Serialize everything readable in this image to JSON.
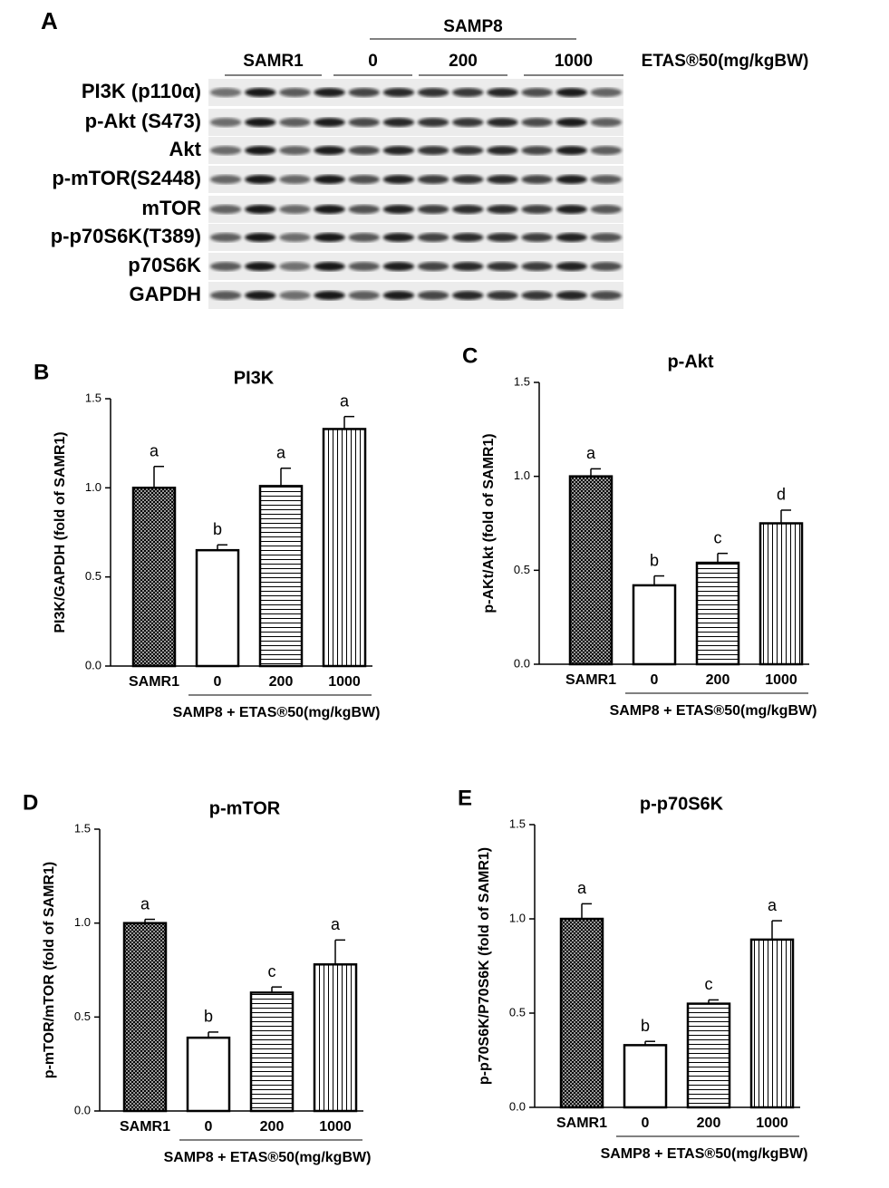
{
  "blot": {
    "panel_label": "A",
    "group_label": "SAMP8",
    "lanes": [
      "SAMR1",
      "0",
      "200",
      "1000"
    ],
    "treatment_label": "ETAS®50(mg/kgBW)",
    "rows": [
      "PI3K (p110α)",
      "p-Akt (S473)",
      "Akt",
      "p-mTOR(S2448)",
      "mTOR",
      "p-p70S6K(T389)",
      "p70S6K",
      "GAPDH"
    ]
  },
  "chart_data": [
    {
      "type": "bar",
      "panel_label": "B",
      "title": "PI3K",
      "y_label": "PI3K/GAPDH (fold of SAMR1)",
      "group_label": "SAMP8 + ETAS®50(mg/kgBW)",
      "categories": [
        "SAMR1",
        "0",
        "200",
        "1000"
      ],
      "values": [
        1.0,
        0.65,
        1.01,
        1.33
      ],
      "errors": [
        0.12,
        0.03,
        0.1,
        0.07
      ],
      "annotations": [
        "a",
        "b",
        "a",
        "a"
      ],
      "patterns": [
        "crosshatch",
        "none",
        "horizontal",
        "vertical"
      ],
      "color": "#000000",
      "ylim": [
        0,
        1.5
      ],
      "yticks": [
        {
          "value": 0,
          "label": "0.0"
        },
        {
          "value": 0.5,
          "label": "0.5"
        },
        {
          "value": 1,
          "label": "1.0"
        },
        {
          "value": 1.5,
          "label": "1.5"
        }
      ]
    },
    {
      "type": "bar",
      "panel_label": "C",
      "title": "p-Akt",
      "y_label": "p-AKt/Akt (fold of SAMR1)",
      "group_label": "SAMP8 + ETAS®50(mg/kgBW)",
      "categories": [
        "SAMR1",
        "0",
        "200",
        "1000"
      ],
      "values": [
        1.0,
        0.42,
        0.54,
        0.75
      ],
      "errors": [
        0.04,
        0.05,
        0.05,
        0.07
      ],
      "annotations": [
        "a",
        "b",
        "c",
        "d"
      ],
      "patterns": [
        "crosshatch",
        "none",
        "horizontal",
        "vertical"
      ],
      "color": "#000000",
      "ylim": [
        0,
        1.5
      ],
      "yticks": [
        {
          "value": 0,
          "label": "0.0"
        },
        {
          "value": 0.5,
          "label": "0.5"
        },
        {
          "value": 1,
          "label": "1.0"
        },
        {
          "value": 1.5,
          "label": "1.5"
        }
      ]
    },
    {
      "type": "bar",
      "panel_label": "D",
      "title": "p-mTOR",
      "y_label": "p-mTOR/mTOR (fold of SAMR1)",
      "group_label": "SAMP8 + ETAS®50(mg/kgBW)",
      "categories": [
        "SAMR1",
        "0",
        "200",
        "1000"
      ],
      "values": [
        1.0,
        0.39,
        0.63,
        0.78
      ],
      "errors": [
        0.02,
        0.03,
        0.03,
        0.13
      ],
      "annotations": [
        "a",
        "b",
        "c",
        "a"
      ],
      "patterns": [
        "crosshatch",
        "none",
        "horizontal",
        "vertical"
      ],
      "color": "#000000",
      "ylim": [
        0,
        1.5
      ],
      "yticks": [
        {
          "value": 0,
          "label": "0.0"
        },
        {
          "value": 0.5,
          "label": "0.5"
        },
        {
          "value": 1,
          "label": "1.0"
        },
        {
          "value": 1.5,
          "label": "1.5"
        }
      ]
    },
    {
      "type": "bar",
      "panel_label": "E",
      "title": "p-p70S6K",
      "y_label": "p-p70S6K/P70S6K (fold of SAMR1)",
      "group_label": "SAMP8 + ETAS®50(mg/kgBW)",
      "categories": [
        "SAMR1",
        "0",
        "200",
        "1000"
      ],
      "values": [
        1.0,
        0.33,
        0.55,
        0.89
      ],
      "errors": [
        0.08,
        0.02,
        0.02,
        0.1
      ],
      "annotations": [
        "a",
        "b",
        "c",
        "a"
      ],
      "patterns": [
        "crosshatch",
        "none",
        "horizontal",
        "vertical"
      ],
      "color": "#000000",
      "ylim": [
        0,
        1.5
      ],
      "yticks": [
        {
          "value": 0,
          "label": "0.0"
        },
        {
          "value": 0.5,
          "label": "0.5"
        },
        {
          "value": 1,
          "label": "1.0"
        },
        {
          "value": 1.5,
          "label": "1.5"
        }
      ]
    }
  ]
}
